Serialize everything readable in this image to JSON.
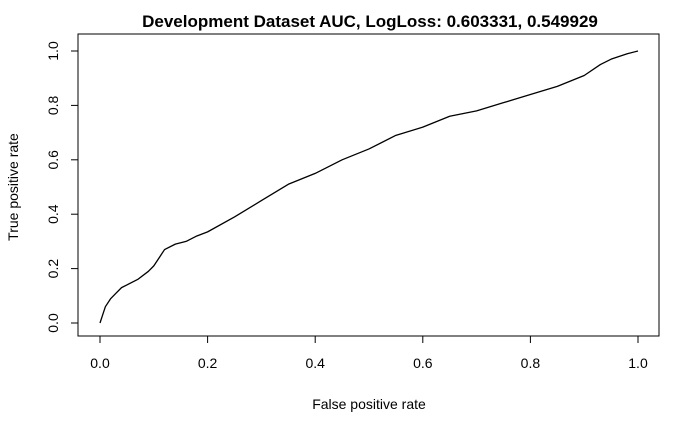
{
  "chart_data": {
    "type": "line",
    "title": "Development Dataset AUC, LogLoss: 0.603331, 0.549929",
    "xlabel": "False positive rate",
    "ylabel": "True positive rate",
    "xlim": [
      0,
      1
    ],
    "ylim": [
      0,
      1
    ],
    "x_ticks": [
      "0.0",
      "0.2",
      "0.4",
      "0.6",
      "0.8",
      "1.0"
    ],
    "y_ticks": [
      "0.0",
      "0.2",
      "0.4",
      "0.6",
      "0.8",
      "1.0"
    ],
    "grid": false,
    "series": [
      {
        "color": "#000000",
        "x": [
          0.0,
          0.005,
          0.01,
          0.02,
          0.03,
          0.04,
          0.05,
          0.07,
          0.09,
          0.1,
          0.11,
          0.12,
          0.14,
          0.16,
          0.18,
          0.2,
          0.25,
          0.3,
          0.35,
          0.4,
          0.45,
          0.5,
          0.55,
          0.6,
          0.65,
          0.7,
          0.75,
          0.8,
          0.85,
          0.9,
          0.93,
          0.95,
          0.98,
          1.0
        ],
        "y": [
          0.0,
          0.03,
          0.06,
          0.09,
          0.11,
          0.13,
          0.14,
          0.16,
          0.19,
          0.21,
          0.24,
          0.27,
          0.29,
          0.3,
          0.32,
          0.335,
          0.39,
          0.45,
          0.51,
          0.55,
          0.6,
          0.64,
          0.69,
          0.72,
          0.76,
          0.78,
          0.81,
          0.84,
          0.87,
          0.91,
          0.95,
          0.97,
          0.99,
          1.0
        ]
      }
    ]
  }
}
